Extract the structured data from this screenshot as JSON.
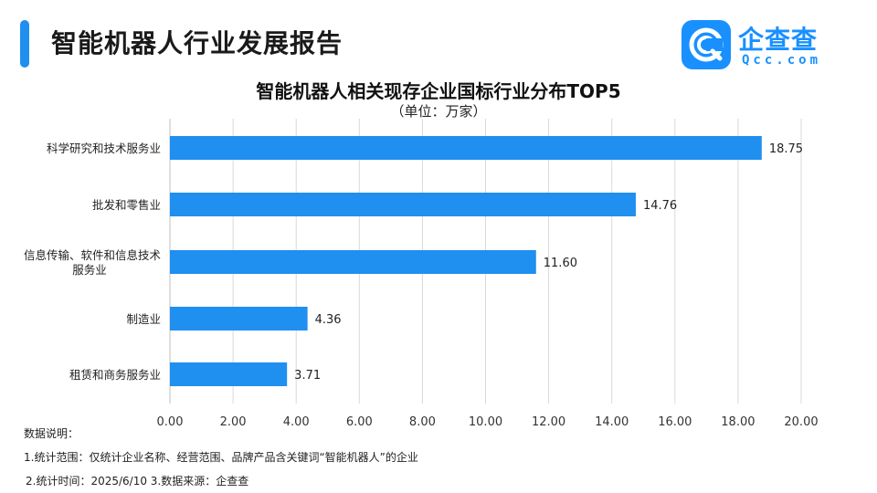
{
  "header": {
    "title": "智能机器人行业发展报告",
    "accent_color": "#1f8ff0"
  },
  "logo": {
    "icon": "qcc-logo-icon",
    "name": "企查查",
    "domain": "Qcc.com",
    "color": "#1890ff"
  },
  "chart_data": {
    "type": "bar",
    "orientation": "horizontal",
    "title": "智能机器人相关现存企业国标行业分布TOP5",
    "subtitle": "（单位：万家）",
    "categories": [
      "科学研究和技术服务业",
      "批发和零售业",
      "信息传输、软件和信息技术服务业",
      "制造业",
      "租赁和商务服务业"
    ],
    "values": [
      18.75,
      14.76,
      11.6,
      4.36,
      3.71
    ],
    "value_labels": [
      "18.75",
      "14.76",
      "11.60",
      "4.36",
      "3.71"
    ],
    "xlim": [
      0,
      20
    ],
    "xticks": [
      "0.00",
      "2.00",
      "4.00",
      "6.00",
      "8.00",
      "10.00",
      "12.00",
      "14.00",
      "16.00",
      "18.00",
      "20.00"
    ],
    "grid": true,
    "bar_color": "#1f8ff0"
  },
  "notes": {
    "heading": "数据说明：",
    "line1": "1.统计范围：仅统计企业名称、经营范围、品牌产品含关键词“智能机器人”的企业",
    "line2": "2.统计时间：2025/6/10  3.数据来源：企查查"
  }
}
